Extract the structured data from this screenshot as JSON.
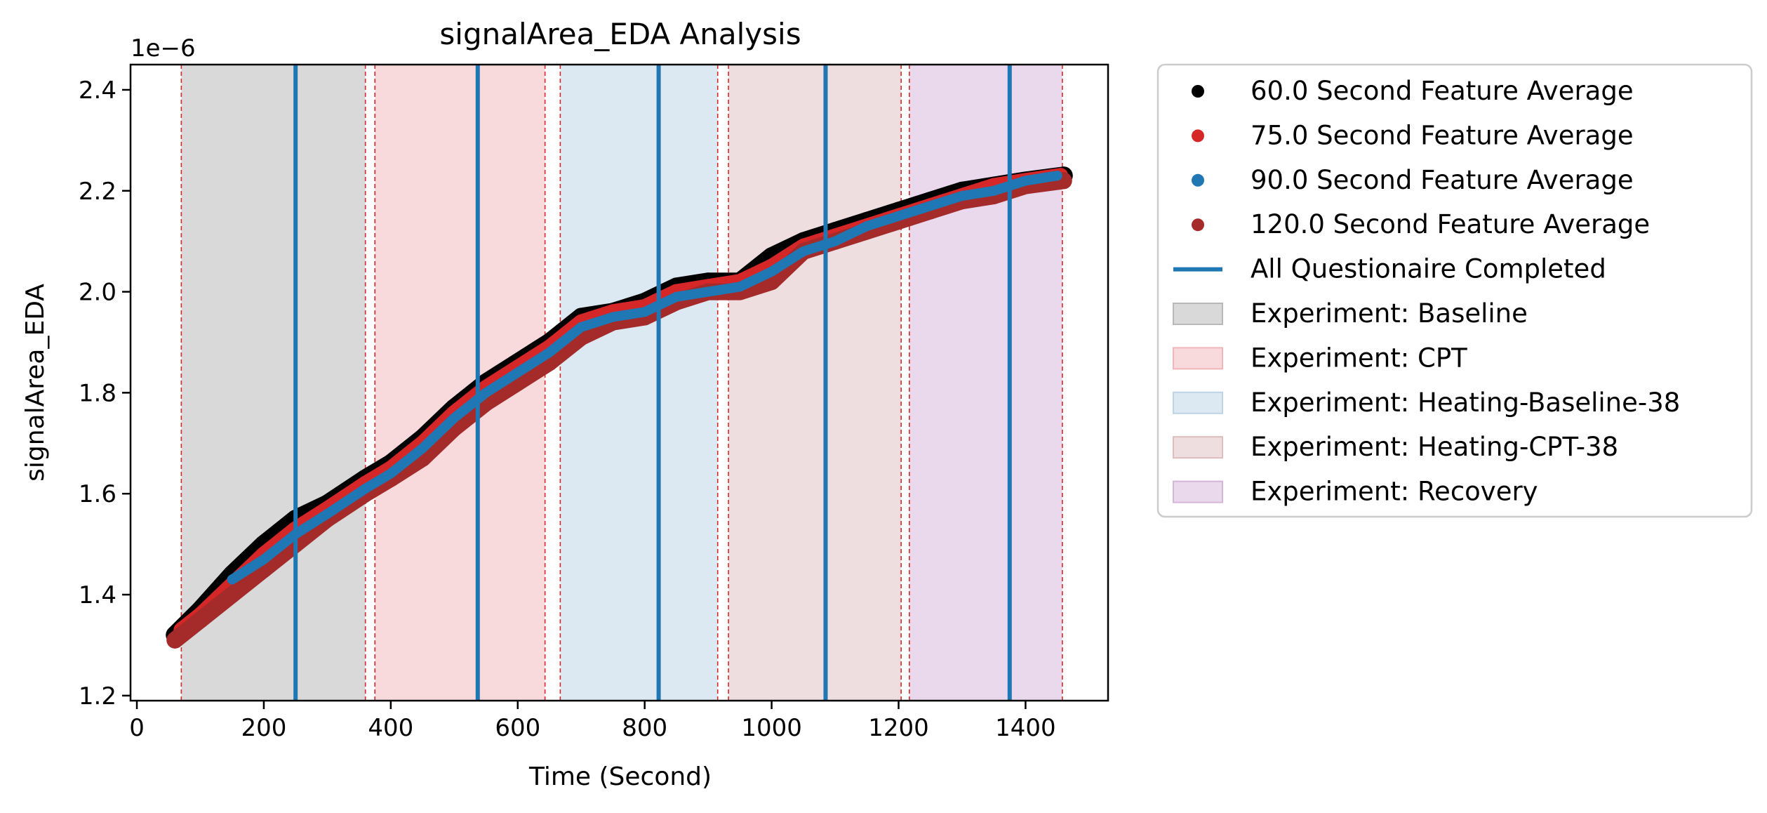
{
  "chart_data": {
    "type": "scatter",
    "title": "signalArea_EDA Analysis",
    "xlabel": "Time (Second)",
    "ylabel": "signalArea_EDA",
    "y_offset_label": "1e−6",
    "xlim": [
      -10,
      1530
    ],
    "ylim": [
      1.19,
      2.45
    ],
    "x_ticks": [
      0,
      200,
      400,
      600,
      800,
      1000,
      1200,
      1400
    ],
    "y_ticks": [
      1.2,
      1.4,
      1.6,
      1.8,
      2.0,
      2.2,
      2.4
    ],
    "y_tick_labels": [
      "1.2",
      "1.4",
      "1.6",
      "1.8",
      "2.0",
      "2.2",
      "2.4"
    ],
    "grid": false,
    "legend_position": "outside-right",
    "series": [
      {
        "name": "60.0 Second Feature Average",
        "color": "#000000",
        "x": [
          60,
          100,
          150,
          200,
          250,
          300,
          360,
          400,
          450,
          500,
          550,
          600,
          650,
          700,
          750,
          800,
          850,
          900,
          950,
          1000,
          1050,
          1100,
          1150,
          1200,
          1250,
          1300,
          1350,
          1400,
          1460
        ],
        "y": [
          1.32,
          1.37,
          1.44,
          1.5,
          1.55,
          1.58,
          1.63,
          1.66,
          1.71,
          1.77,
          1.82,
          1.86,
          1.9,
          1.95,
          1.96,
          1.98,
          2.01,
          2.02,
          2.02,
          2.07,
          2.1,
          2.12,
          2.14,
          2.16,
          2.18,
          2.2,
          2.21,
          2.22,
          2.23
        ]
      },
      {
        "name": "75.0 Second Feature Average",
        "color": "#d62728",
        "x": [
          70,
          100,
          150,
          200,
          250,
          300,
          360,
          400,
          450,
          500,
          550,
          600,
          650,
          700,
          750,
          800,
          850,
          900,
          950,
          1000,
          1050,
          1100,
          1150,
          1200,
          1250,
          1300,
          1350,
          1400,
          1455
        ],
        "y": [
          1.33,
          1.36,
          1.42,
          1.48,
          1.53,
          1.57,
          1.62,
          1.65,
          1.7,
          1.76,
          1.81,
          1.85,
          1.89,
          1.94,
          1.96,
          1.97,
          2.0,
          2.01,
          2.02,
          2.05,
          2.09,
          2.11,
          2.13,
          2.15,
          2.17,
          2.19,
          2.21,
          2.22,
          2.23
        ]
      },
      {
        "name": "90.0 Second Feature Average",
        "color": "#1f77b4",
        "x": [
          150,
          200,
          250,
          300,
          360,
          400,
          450,
          500,
          550,
          600,
          650,
          700,
          750,
          800,
          850,
          900,
          950,
          1000,
          1050,
          1100,
          1150,
          1200,
          1250,
          1300,
          1350,
          1400,
          1450
        ],
        "y": [
          1.43,
          1.47,
          1.52,
          1.56,
          1.61,
          1.64,
          1.69,
          1.75,
          1.8,
          1.84,
          1.88,
          1.93,
          1.95,
          1.96,
          1.99,
          2.0,
          2.01,
          2.04,
          2.08,
          2.1,
          2.13,
          2.15,
          2.17,
          2.19,
          2.2,
          2.22,
          2.23
        ]
      },
      {
        "name": "120.0 Second Feature Average",
        "color": "#a52a2a",
        "x": [
          60,
          100,
          150,
          200,
          250,
          300,
          360,
          400,
          450,
          500,
          550,
          600,
          650,
          700,
          750,
          800,
          850,
          900,
          950,
          1000,
          1050,
          1100,
          1150,
          1200,
          1250,
          1300,
          1350,
          1400,
          1460
        ],
        "y": [
          1.31,
          1.35,
          1.4,
          1.45,
          1.5,
          1.55,
          1.6,
          1.63,
          1.67,
          1.73,
          1.78,
          1.82,
          1.86,
          1.91,
          1.94,
          1.95,
          1.98,
          2.0,
          2.0,
          2.02,
          2.08,
          2.1,
          2.12,
          2.14,
          2.16,
          2.18,
          2.19,
          2.21,
          2.22
        ]
      }
    ],
    "questionnaire_lines": {
      "name": "All Questionaire Completed",
      "color": "#1f77b4",
      "x": [
        250,
        537,
        822,
        1085,
        1375
      ]
    },
    "experiments": [
      {
        "name": "Experiment: Baseline",
        "start": 70,
        "end": 360,
        "color": "#d9d9d9",
        "edge": "#b8b8b8"
      },
      {
        "name": "Experiment: CPT",
        "start": 375,
        "end": 643,
        "color": "#f8dadc",
        "edge": "#efb5b9"
      },
      {
        "name": "Experiment: Heating-Baseline-38",
        "start": 667,
        "end": 915,
        "color": "#dde9f2",
        "edge": "#bdd3e6"
      },
      {
        "name": "Experiment: Heating-CPT-38",
        "start": 932,
        "end": 1204,
        "color": "#efdedf",
        "edge": "#dfbcbe"
      },
      {
        "name": "Experiment: Recovery",
        "start": 1217,
        "end": 1458,
        "color": "#ead9ec",
        "edge": "#d5b5da"
      }
    ]
  }
}
